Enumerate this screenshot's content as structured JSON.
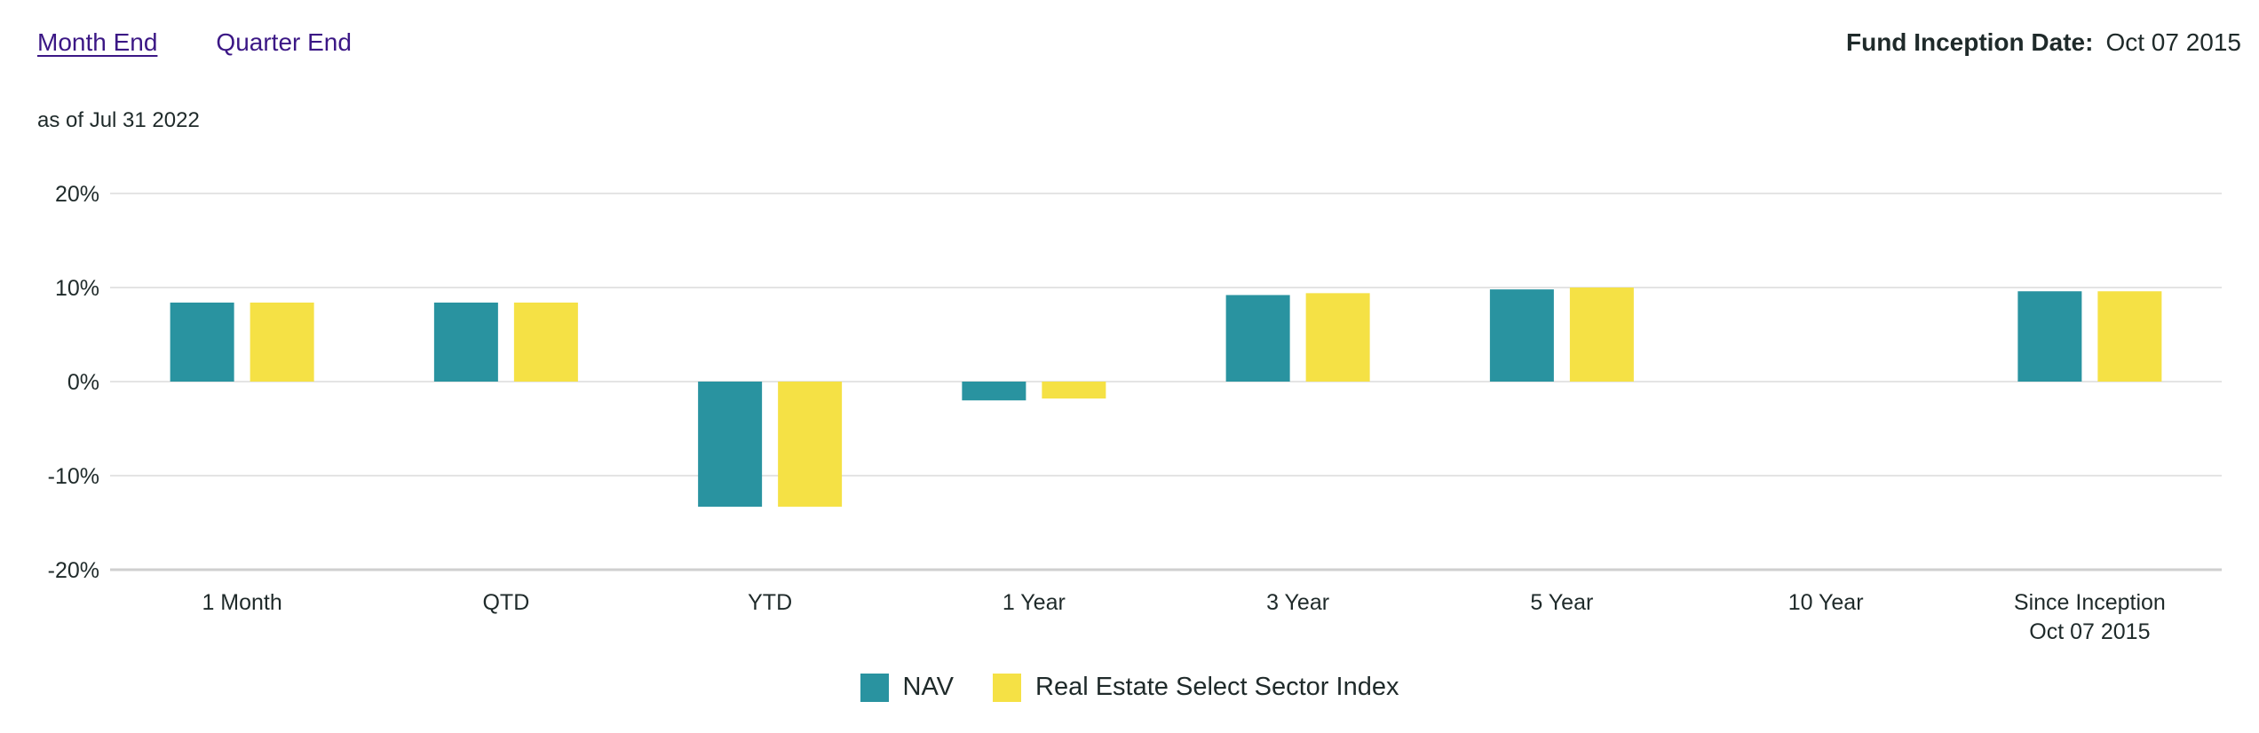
{
  "tabs": {
    "month_end": "Month End",
    "quarter_end": "Quarter End"
  },
  "inception": {
    "label": "Fund Inception Date:",
    "value": "Oct 07 2015"
  },
  "as_of": "as of Jul 31 2022",
  "colors": {
    "nav": "#2993a0",
    "index": "#f5e145",
    "grid": "#e4e4e4",
    "axis": "#cfcfcf"
  },
  "chart_data": {
    "type": "bar",
    "categories": [
      [
        "1 Month"
      ],
      [
        "QTD"
      ],
      [
        "YTD"
      ],
      [
        "1 Year"
      ],
      [
        "3 Year"
      ],
      [
        "5 Year"
      ],
      [
        "10 Year"
      ],
      [
        "Since Inception",
        "Oct 07 2015"
      ]
    ],
    "series": [
      {
        "name": "NAV",
        "values": [
          8.4,
          8.4,
          -13.3,
          -2.0,
          9.2,
          9.8,
          null,
          9.6
        ]
      },
      {
        "name": "Real Estate Select Sector Index",
        "values": [
          8.4,
          8.4,
          -13.3,
          -1.8,
          9.4,
          10.0,
          null,
          9.6
        ]
      }
    ],
    "yticks": [
      20,
      10,
      0,
      -10,
      -20
    ],
    "ytick_labels": [
      "20%",
      "10%",
      "0%",
      "-10%",
      "-20%"
    ],
    "ylim": [
      -20,
      20
    ],
    "grid": true,
    "legend_position": "bottom-center"
  }
}
